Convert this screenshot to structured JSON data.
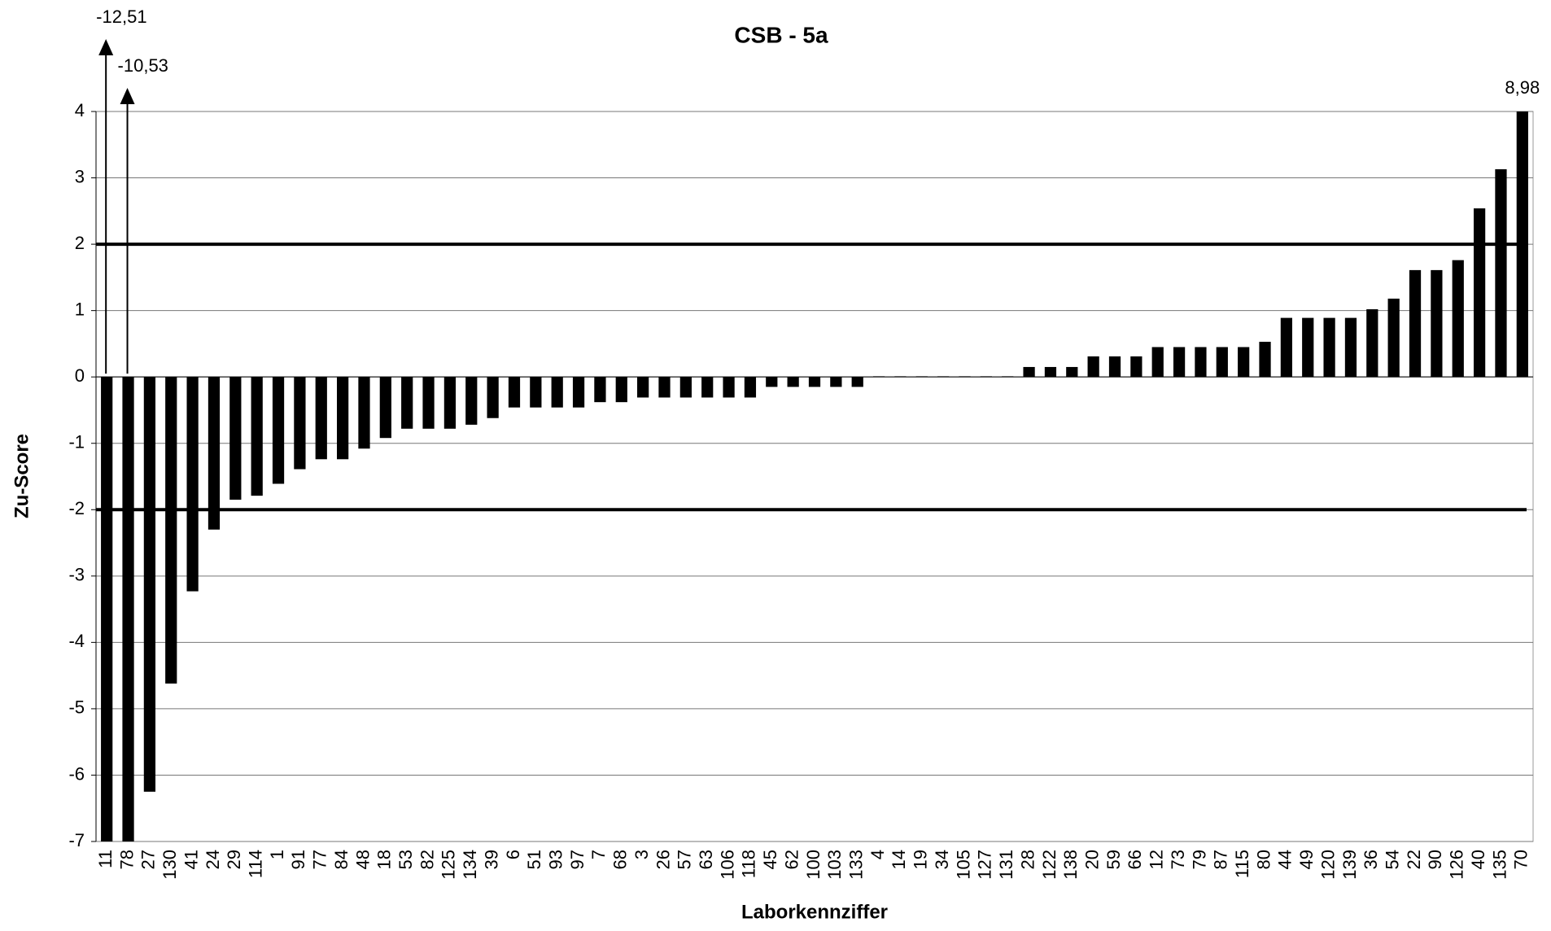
{
  "chart_data": {
    "type": "bar",
    "title": "CSB - 5a",
    "x_label": "Laborkennziffer",
    "y_label": "Zu-Score",
    "categories": [
      "11",
      "78",
      "27",
      "130",
      "41",
      "24",
      "29",
      "114",
      "1",
      "91",
      "77",
      "84",
      "48",
      "18",
      "53",
      "82",
      "125",
      "134",
      "39",
      "6",
      "51",
      "93",
      "97",
      "7",
      "68",
      "3",
      "26",
      "57",
      "63",
      "106",
      "118",
      "45",
      "62",
      "100",
      "103",
      "133",
      "4",
      "14",
      "19",
      "34",
      "105",
      "127",
      "131",
      "28",
      "122",
      "138",
      "20",
      "59",
      "66",
      "12",
      "73",
      "79",
      "87",
      "115",
      "80",
      "44",
      "49",
      "120",
      "139",
      "36",
      "54",
      "22",
      "90",
      "126",
      "40",
      "135",
      "70"
    ],
    "values": [
      -12.51,
      -10.53,
      -6.25,
      -4.62,
      -3.23,
      -2.3,
      -1.85,
      -1.79,
      -1.61,
      -1.39,
      -1.24,
      -1.24,
      -1.08,
      -0.92,
      -0.78,
      -0.78,
      -0.78,
      -0.72,
      -0.62,
      -0.46,
      -0.46,
      -0.46,
      -0.46,
      -0.38,
      -0.38,
      -0.31,
      -0.31,
      -0.31,
      -0.31,
      -0.31,
      -0.31,
      -0.15,
      -0.15,
      -0.15,
      -0.15,
      -0.15,
      0.01,
      0.01,
      0.01,
      0.01,
      0.01,
      0.01,
      0.01,
      0.15,
      0.15,
      0.15,
      0.31,
      0.31,
      0.31,
      0.45,
      0.45,
      0.45,
      0.45,
      0.45,
      0.53,
      0.89,
      0.89,
      0.89,
      0.89,
      1.02,
      1.18,
      1.61,
      1.61,
      1.76,
      2.54,
      3.13,
      8.98
    ],
    "value_labels": [
      "-12,51",
      "-10,53",
      null,
      null,
      null,
      null,
      null,
      null,
      null,
      null,
      null,
      null,
      null,
      null,
      null,
      null,
      null,
      null,
      null,
      null,
      null,
      null,
      null,
      null,
      null,
      null,
      null,
      null,
      null,
      null,
      null,
      null,
      null,
      null,
      null,
      null,
      null,
      null,
      null,
      null,
      null,
      null,
      null,
      null,
      null,
      null,
      null,
      null,
      null,
      null,
      null,
      null,
      null,
      null,
      null,
      null,
      null,
      null,
      null,
      null,
      null,
      null,
      null,
      null,
      null,
      null,
      "8,98"
    ],
    "color": "#000000",
    "ylim": [
      -7,
      4
    ],
    "yticks": [
      -7,
      -6,
      -5,
      -4,
      -3,
      -2,
      -1,
      0,
      1,
      2,
      3,
      4
    ],
    "grid": true,
    "reference_lines": [
      2,
      -2
    ]
  }
}
